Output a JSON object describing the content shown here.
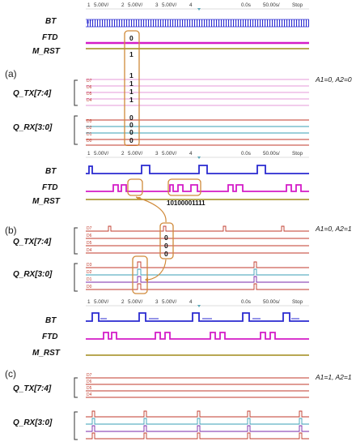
{
  "scope_header": {
    "ch1": "1",
    "ch1_scale": "5.00V/",
    "ch2": "2",
    "ch2_scale": "5.00V/",
    "ch3": "3",
    "ch3_scale": "5.00V/",
    "ch4": "4",
    "offset": "0.0s",
    "timebase": "50.00s/",
    "state": "Stop"
  },
  "signals": {
    "bt": "BT",
    "ftd": "FTD",
    "m_rst": "M_RST",
    "q_tx": "Q_TX[7:4]",
    "q_rx": "Q_RX[3:0]"
  },
  "channel_labels": [
    "D7",
    "D6",
    "D5",
    "D4",
    "D3",
    "D2",
    "D1",
    "D0"
  ],
  "panels": [
    {
      "letter": "(a)",
      "condition": "A1=0, A2=0",
      "ftd_bit": "0",
      "m_rst_bit": "1",
      "tx_bits": [
        "1",
        "1",
        "1",
        "1"
      ],
      "rx_bits": [
        "0",
        "0",
        "0",
        "0"
      ]
    },
    {
      "letter": "(b)",
      "condition": "A1=0, A2=1",
      "ftd_sequence": "10100001111",
      "tx_bits": [
        "0",
        "0",
        "0"
      ]
    },
    {
      "letter": "(c)",
      "condition": "A1=1, A2=1"
    }
  ],
  "colors": {
    "bt": "#2a2ad0",
    "ftd": "#d41cc8",
    "m_rst": "#a08a1a",
    "tx": "#c0392b",
    "rx_red": "#c0392b",
    "rx_cyan": "#3a9fb5",
    "rx_purple": "#7a2aa8",
    "annotation": "#d08a3a"
  }
}
